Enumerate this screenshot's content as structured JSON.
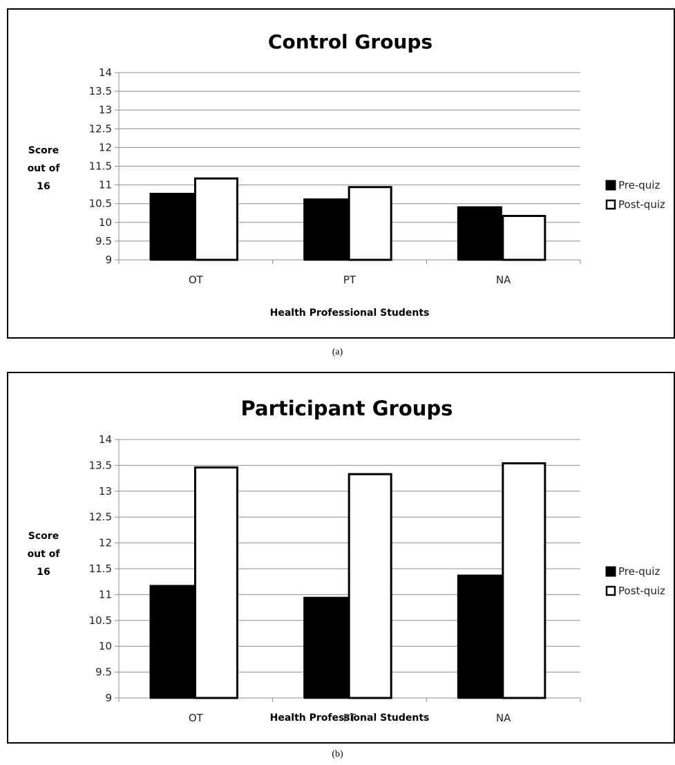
{
  "chart_data": [
    {
      "type": "bar",
      "title": "Control Groups",
      "xlabel": "Health Professional Students",
      "ylabel_lines": [
        "Score",
        "out of",
        "16"
      ],
      "categories": [
        "OT",
        "PT",
        "NA"
      ],
      "series": [
        {
          "name": "Pre-quiz",
          "values": [
            10.78,
            10.63,
            10.42
          ],
          "color": "#000000"
        },
        {
          "name": "Post-quiz",
          "values": [
            11.2,
            10.97,
            10.2
          ],
          "color": "#ffffff"
        }
      ],
      "ylim": [
        9,
        14
      ],
      "yticks": [
        "9",
        "9.5",
        "10",
        "10.5",
        "11",
        "11.5",
        "12",
        "12.5",
        "13",
        "13.5",
        "14"
      ],
      "grid": true,
      "legend_position": "right",
      "caption": "(a)"
    },
    {
      "type": "bar",
      "title": "Participant Groups",
      "xlabel": "Health Professional Students",
      "ylabel_lines": [
        "Score",
        "out of",
        "16"
      ],
      "categories": [
        "OT",
        "PT",
        "NA"
      ],
      "series": [
        {
          "name": "Pre-quiz",
          "values": [
            11.18,
            10.95,
            11.38
          ],
          "color": "#000000"
        },
        {
          "name": "Post-quiz",
          "values": [
            13.48,
            13.35,
            13.56
          ],
          "color": "#ffffff"
        }
      ],
      "ylim": [
        9,
        14
      ],
      "yticks": [
        "9",
        "9.5",
        "10",
        "10.5",
        "11",
        "11.5",
        "12",
        "12.5",
        "13",
        "13.5",
        "14"
      ],
      "grid": true,
      "legend_position": "right",
      "caption": "(b)"
    }
  ]
}
